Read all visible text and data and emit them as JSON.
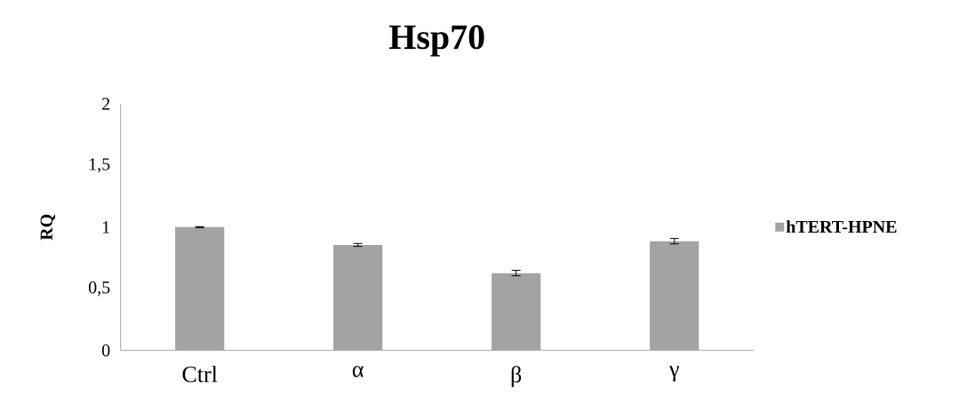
{
  "chart_data": {
    "type": "bar",
    "title": "Hsp70",
    "ylabel": "RQ",
    "categories": [
      "Ctrl",
      "α",
      "β",
      "γ"
    ],
    "series": [
      {
        "name": "hTERT-HPNE",
        "color": "#a3a3a3",
        "values": [
          1.0,
          0.855,
          0.627,
          0.886
        ],
        "errors": [
          0.004,
          0.012,
          0.022,
          0.022
        ]
      }
    ],
    "ylim": [
      0,
      2
    ],
    "yticks": [
      0,
      {
        "value": 0.5,
        "label": "0,5"
      },
      1,
      {
        "value": 1.5,
        "label": "1,5"
      },
      2
    ],
    "legend": "right"
  }
}
